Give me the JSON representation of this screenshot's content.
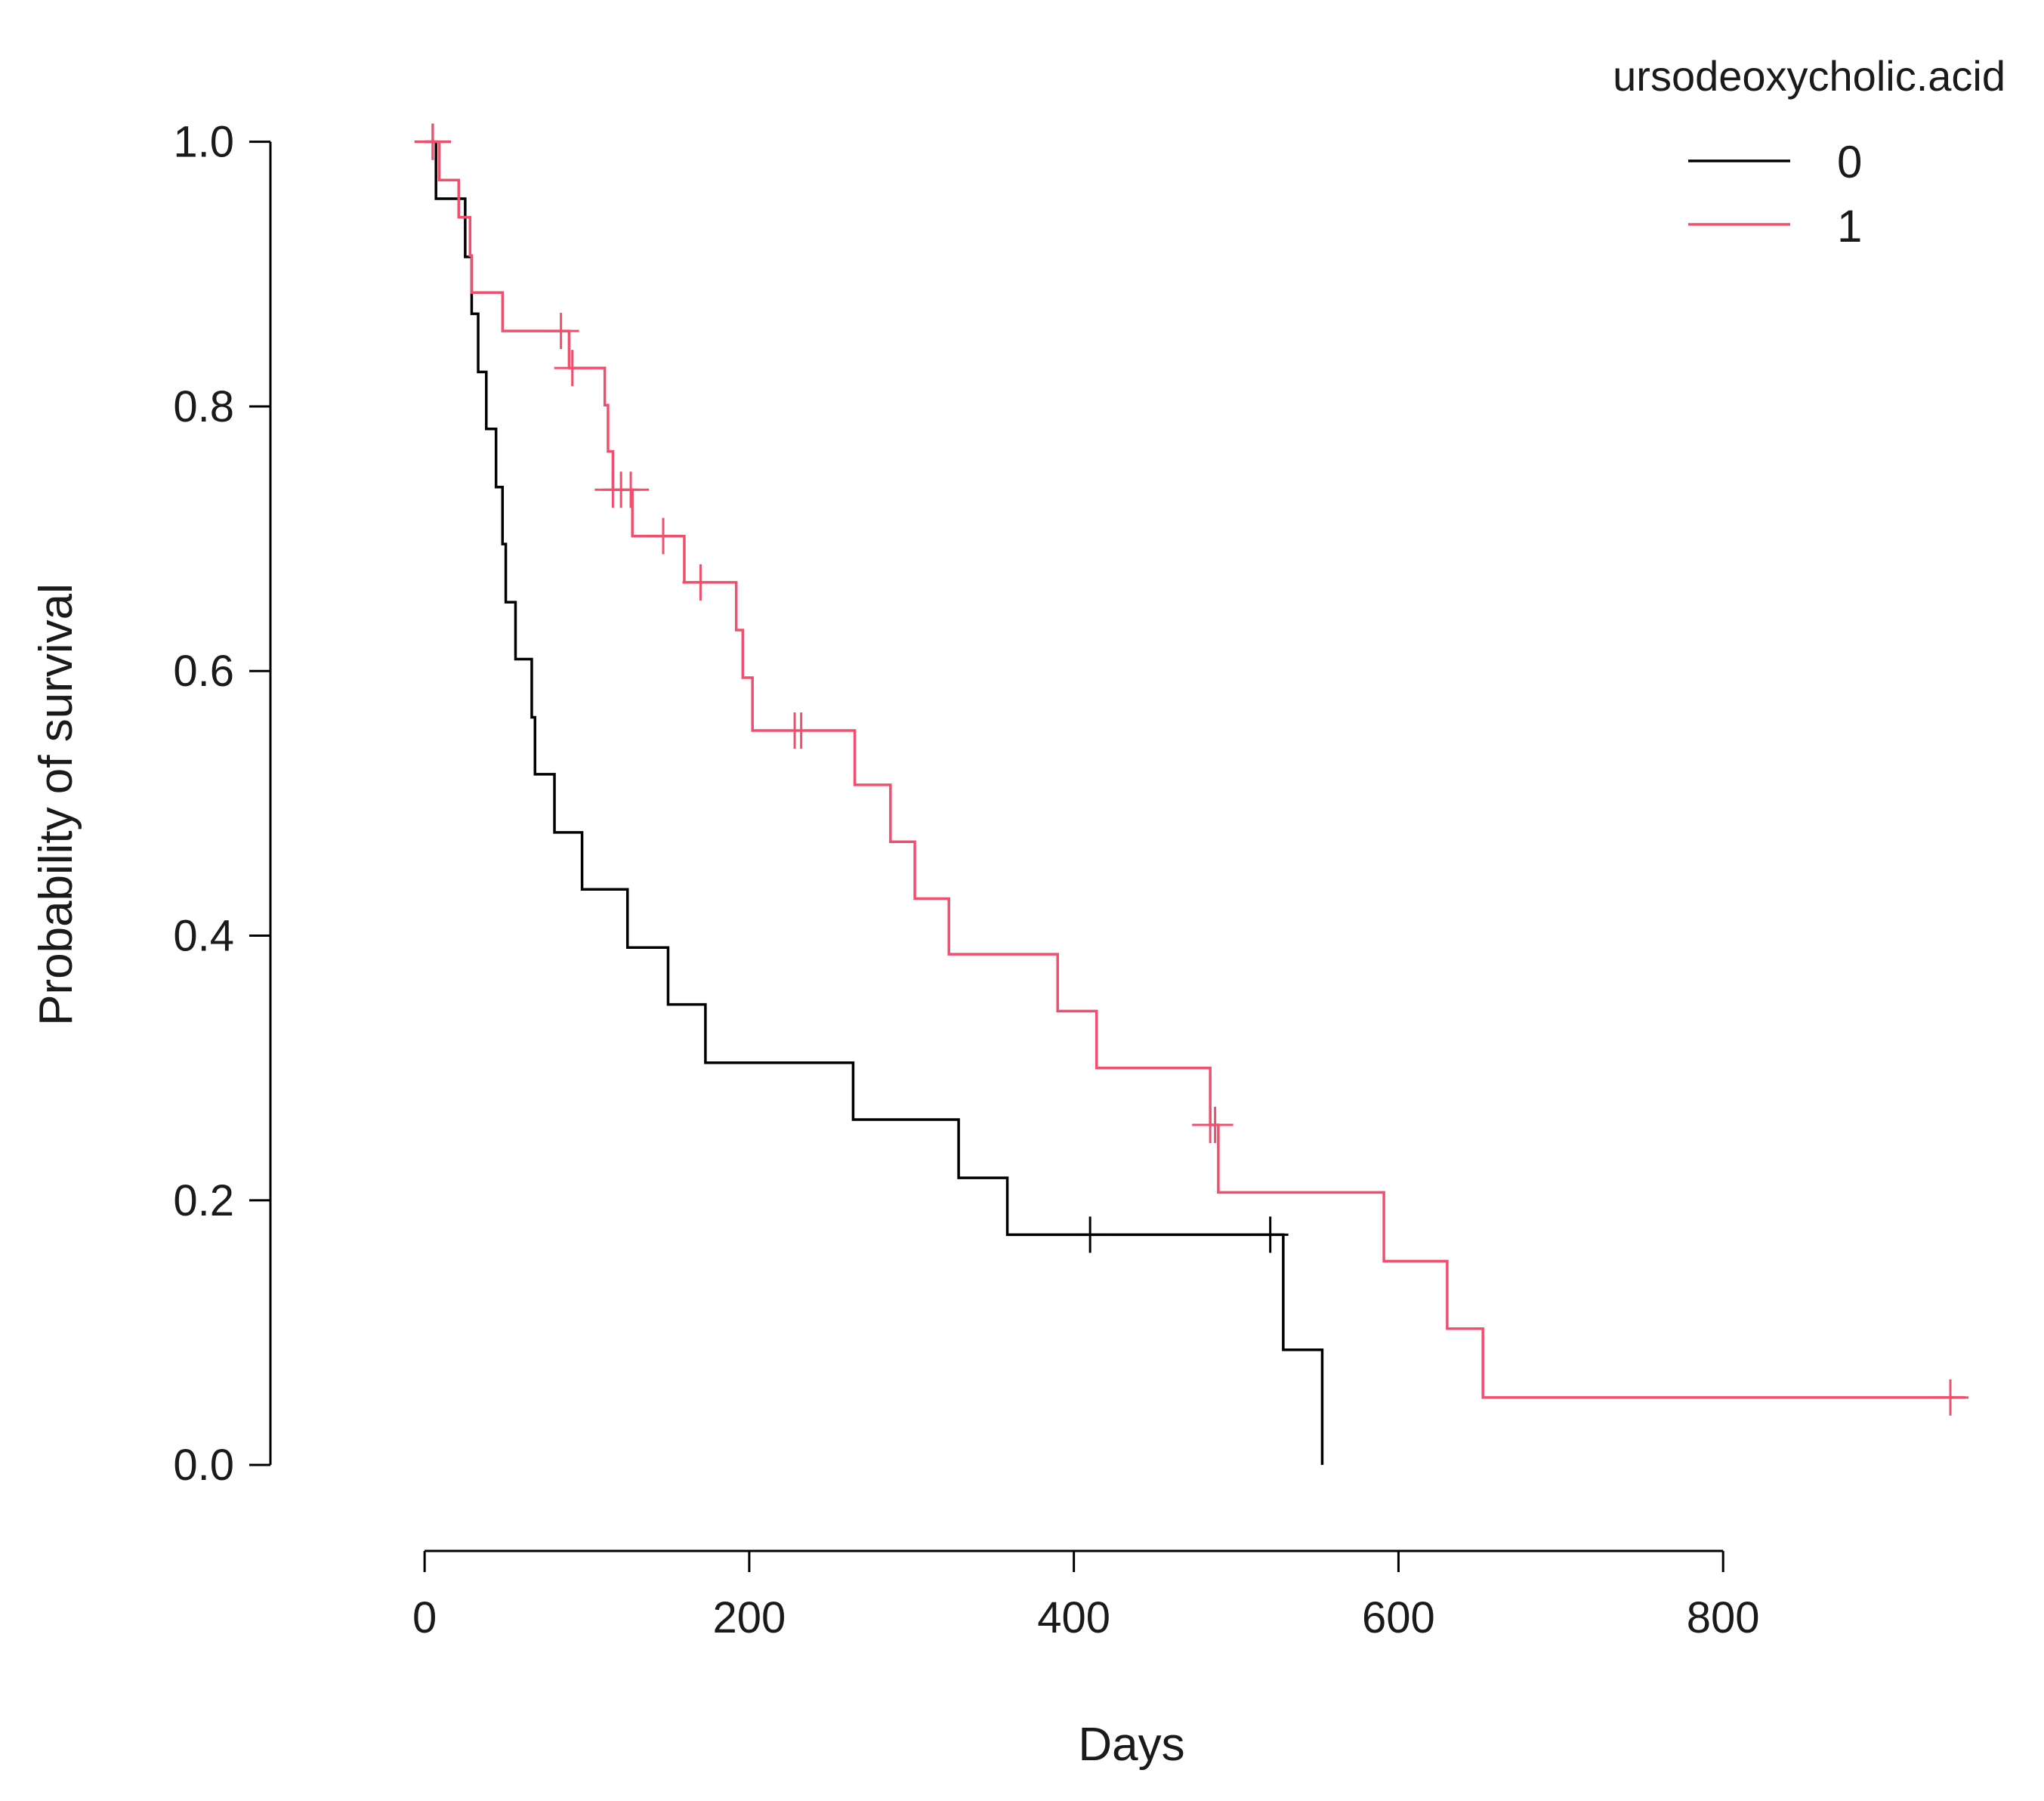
{
  "chart_data": {
    "type": "line",
    "subtype": "kaplan-meier step curve with censor marks",
    "title": "",
    "xlabel": "Days",
    "ylabel": "Probability of survival",
    "xlim": [
      -95,
      960
    ],
    "ylim": [
      -0.065,
      1.09
    ],
    "xticks": [
      0,
      200,
      400,
      600,
      800
    ],
    "yticks": [
      0.0,
      0.2,
      0.4,
      0.6,
      0.8,
      1.0
    ],
    "xtick_labels": [
      "0",
      "200",
      "400",
      "600",
      "800"
    ],
    "ytick_labels": [
      "0.0",
      "0.2",
      "0.4",
      "0.6",
      "0.8",
      "1.0"
    ],
    "grid": false,
    "legend": {
      "title": "ursodeoxycholic.acid",
      "position": "top-right"
    },
    "series": [
      {
        "name": "0",
        "color": "#000000",
        "steps": [
          [
            0,
            1.0
          ],
          [
            7,
            0.957
          ],
          [
            25,
            0.913
          ],
          [
            29,
            0.87
          ],
          [
            33,
            0.826
          ],
          [
            38,
            0.783
          ],
          [
            44,
            0.739
          ],
          [
            48,
            0.696
          ],
          [
            50,
            0.652
          ],
          [
            56,
            0.609
          ],
          [
            66,
            0.565
          ],
          [
            68,
            0.522
          ],
          [
            80,
            0.478
          ],
          [
            97,
            0.435
          ],
          [
            125,
            0.391
          ],
          [
            150,
            0.348
          ],
          [
            173,
            0.304
          ],
          [
            264,
            0.261
          ],
          [
            329,
            0.217
          ],
          [
            359,
            0.174
          ],
          [
            529,
            0.087
          ],
          [
            553,
            0.0
          ]
        ],
        "censored": [
          [
            5,
            1.0
          ],
          [
            410,
            0.174
          ],
          [
            521,
            0.174
          ]
        ]
      },
      {
        "name": "1",
        "color": "#f0506e",
        "steps": [
          [
            0,
            1.0
          ],
          [
            9,
            0.971
          ],
          [
            21,
            0.943
          ],
          [
            28,
            0.914
          ],
          [
            29,
            0.886
          ],
          [
            48,
            0.857
          ],
          [
            89,
            0.829
          ],
          [
            111,
            0.801
          ],
          [
            113,
            0.766
          ],
          [
            116,
            0.737
          ],
          [
            128,
            0.702
          ],
          [
            160,
            0.667
          ],
          [
            192,
            0.631
          ],
          [
            196,
            0.595
          ],
          [
            202,
            0.555
          ],
          [
            265,
            0.514
          ],
          [
            287,
            0.471
          ],
          [
            302,
            0.428
          ],
          [
            323,
            0.386
          ],
          [
            390,
            0.343
          ],
          [
            414,
            0.3
          ],
          [
            484,
            0.257
          ],
          [
            489,
            0.206
          ],
          [
            591,
            0.154
          ],
          [
            630,
            0.103
          ],
          [
            652,
            0.051
          ]
        ],
        "censored": [
          [
            5,
            1.0
          ],
          [
            84,
            0.857
          ],
          [
            91,
            0.829
          ],
          [
            116,
            0.737
          ],
          [
            121,
            0.737
          ],
          [
            127,
            0.737
          ],
          [
            147,
            0.702
          ],
          [
            170,
            0.667
          ],
          [
            228,
            0.555
          ],
          [
            232,
            0.555
          ],
          [
            484,
            0.257
          ],
          [
            487,
            0.257
          ],
          [
            940,
            0.051
          ]
        ]
      }
    ]
  }
}
